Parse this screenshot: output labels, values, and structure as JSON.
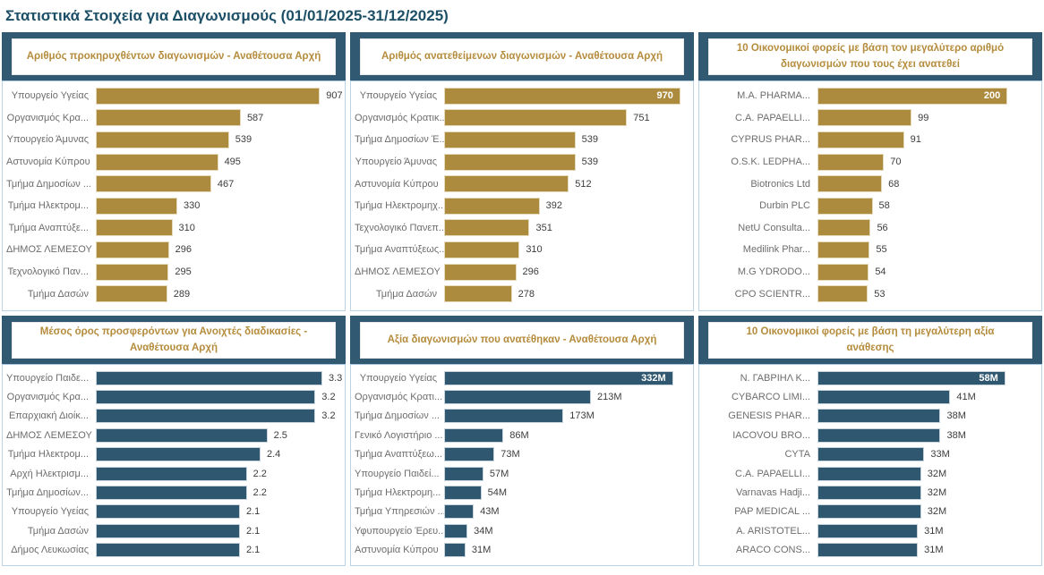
{
  "page": {
    "title": "Στατιστικά Στοιχεία για Διαγωνισμούς (01/01/2025-31/12/2025)"
  },
  "colors": {
    "gold": "#AD8B3E",
    "blue": "#2F5870",
    "band": "#315972",
    "gold_title_text": "#B48C3C",
    "page_title": "#1D4F67"
  },
  "chart_data": [
    {
      "type": "bar",
      "orientation": "horizontal",
      "title": "Αριθμός προκηρυχθέντων διαγωνισμών - Αναθέτουσα Αρχή",
      "color": "gold",
      "value_axis_hidden": true,
      "data_labels": "outside-end",
      "max_fill_pct": 92,
      "first_label_inside": false,
      "rows": [
        {
          "label": "Υπουργείο Υγείας",
          "value": 907,
          "display": "907"
        },
        {
          "label": "Οργανισμός Κρα...",
          "value": 587,
          "display": "587"
        },
        {
          "label": "Υπουργείο Άμυνας",
          "value": 539,
          "display": "539"
        },
        {
          "label": "Αστυνομία Κύπρου",
          "value": 495,
          "display": "495"
        },
        {
          "label": "Τμήμα Δημοσίων ...",
          "value": 467,
          "display": "467"
        },
        {
          "label": "Τμήμα Ηλεκτρομ...",
          "value": 330,
          "display": "330"
        },
        {
          "label": "Τμήμα Αναπτύξε...",
          "value": 310,
          "display": "310"
        },
        {
          "label": "ΔΗΜΟΣ ΛΕΜΕΣΟΥ",
          "value": 296,
          "display": "296"
        },
        {
          "label": "Τεχνολογικό Παν...",
          "value": 295,
          "display": "295"
        },
        {
          "label": "Τμήμα Δασών",
          "value": 289,
          "display": "289"
        }
      ]
    },
    {
      "type": "bar",
      "orientation": "horizontal",
      "title": "Αριθμός ανατεθείμενων διαγωνισμών - Αναθέτουσα Αρχή",
      "color": "gold",
      "value_axis_hidden": true,
      "data_labels": "outside-end",
      "max_fill_pct": 97,
      "first_label_inside": true,
      "rows": [
        {
          "label": "Υπουργείο Υγείας",
          "value": 970,
          "display": "970"
        },
        {
          "label": "Οργανισμός Κρατικ...",
          "value": 751,
          "display": "751"
        },
        {
          "label": "Τμήμα Δημοσίων Έ...",
          "value": 539,
          "display": "539"
        },
        {
          "label": "Υπουργείο Άμυνας",
          "value": 539,
          "display": "539"
        },
        {
          "label": "Αστυνομία Κύπρου",
          "value": 512,
          "display": "512"
        },
        {
          "label": "Τμήμα Ηλεκτρομηχ...",
          "value": 392,
          "display": "392"
        },
        {
          "label": "Τεχνολογικό Πανεπ...",
          "value": 351,
          "display": "351"
        },
        {
          "label": "Τμήμα Αναπτύξεως...",
          "value": 310,
          "display": "310"
        },
        {
          "label": "ΔΗΜΟΣ ΛΕΜΕΣΟΥ",
          "value": 296,
          "display": "296"
        },
        {
          "label": "Τμήμα Δασών",
          "value": 278,
          "display": "278"
        }
      ]
    },
    {
      "type": "bar",
      "orientation": "horizontal",
      "title": "10 Οικονομικοί φορείς με βάση τον μεγαλύτερο αριθμό διαγωνισμών που τους έχει ανατεθεί",
      "color": "gold",
      "value_axis_hidden": true,
      "data_labels": "outside-end",
      "max_fill_pct": 87,
      "first_label_inside": true,
      "rows": [
        {
          "label": "M.A. PHARMA...",
          "value": 200,
          "display": "200"
        },
        {
          "label": "C.A. PAPAELLI...",
          "value": 99,
          "display": "99"
        },
        {
          "label": "CYPRUS PHAR...",
          "value": 91,
          "display": "91"
        },
        {
          "label": "O.S.K. LEDPHA...",
          "value": 70,
          "display": "70"
        },
        {
          "label": "Biotronics Ltd",
          "value": 68,
          "display": "68"
        },
        {
          "label": "Durbin PLC",
          "value": 58,
          "display": "58"
        },
        {
          "label": "NetU Consulta...",
          "value": 56,
          "display": "56"
        },
        {
          "label": "Medilink Phar...",
          "value": 55,
          "display": "55"
        },
        {
          "label": "M.G YDRODO...",
          "value": 54,
          "display": "54"
        },
        {
          "label": "CPO SCIENTR...",
          "value": 53,
          "display": "53"
        }
      ]
    },
    {
      "type": "bar",
      "orientation": "horizontal",
      "title": "Μέσος όρος προσφερόντων για Ανοιχτές διαδικασίες - Αναθέτουσα Αρχή",
      "color": "blue",
      "value_axis_hidden": true,
      "data_labels": "outside-end",
      "max_fill_pct": 93,
      "first_label_inside": false,
      "rows": [
        {
          "label": "Υπουργείο Παιδε...",
          "value": 3.3,
          "display": "3.3"
        },
        {
          "label": "Οργανισμός Κρα...",
          "value": 3.2,
          "display": "3.2"
        },
        {
          "label": "Επαρχιακή Διοίκ...",
          "value": 3.2,
          "display": "3.2"
        },
        {
          "label": "ΔΗΜΟΣ ΛΕΜΕΣΟΥ",
          "value": 2.5,
          "display": "2.5"
        },
        {
          "label": "Τμήμα Ηλεκτρομ...",
          "value": 2.4,
          "display": "2.4"
        },
        {
          "label": "Αρχή Ηλεκτρισμ...",
          "value": 2.2,
          "display": "2.2"
        },
        {
          "label": "Τμήμα Δημοσίων...",
          "value": 2.2,
          "display": "2.2"
        },
        {
          "label": "Υπουργείο Υγείας",
          "value": 2.1,
          "display": "2.1"
        },
        {
          "label": "Τμήμα Δασών",
          "value": 2.1,
          "display": "2.1"
        },
        {
          "label": "Δήμος Λευκωσίας",
          "value": 2.1,
          "display": "2.1"
        }
      ]
    },
    {
      "type": "bar",
      "orientation": "horizontal",
      "title": "Αξία διαγωνισμών που ανατέθηκαν - Αναθέτουσα Αρχή",
      "color": "blue",
      "value_axis_hidden": true,
      "data_labels": "outside-end",
      "unit": "M",
      "max_fill_pct": 94,
      "first_label_inside": true,
      "rows": [
        {
          "label": "Υπουργείο Υγείας",
          "value": 332,
          "display": "332M"
        },
        {
          "label": "Οργανισμός Κρατι...",
          "value": 213,
          "display": "213M"
        },
        {
          "label": "Τμήμα Δημοσίων ...",
          "value": 173,
          "display": "173M"
        },
        {
          "label": "Γενικό Λογιστήριο ...",
          "value": 86,
          "display": "86M"
        },
        {
          "label": "Τμήμα Αναπτύξεω...",
          "value": 73,
          "display": "73M"
        },
        {
          "label": "Υπουργείο Παιδεί...",
          "value": 57,
          "display": "57M"
        },
        {
          "label": "Τμήμα Ηλεκτρομη...",
          "value": 54,
          "display": "54M"
        },
        {
          "label": "Τμήμα Υπηρεσιών ...",
          "value": 43,
          "display": "43M"
        },
        {
          "label": "Υφυπουργείο Έρευ...",
          "value": 34,
          "display": "34M"
        },
        {
          "label": "Αστυνομία Κύπρου",
          "value": 31,
          "display": "31M"
        }
      ]
    },
    {
      "type": "bar",
      "orientation": "horizontal",
      "title": "10 Οικονομικοί φορείς με βάση τη μεγαλύτερη αξία ανάθεσης",
      "color": "blue",
      "value_axis_hidden": true,
      "data_labels": "outside-end",
      "unit": "M",
      "max_fill_pct": 86,
      "first_label_inside": true,
      "rows": [
        {
          "label": "Ν. ΓΑΒΡΙΗΛ Κ...",
          "value": 58,
          "display": "58M"
        },
        {
          "label": "CYBARCO LIMI...",
          "value": 41,
          "display": "41M"
        },
        {
          "label": "GENESIS PHAR...",
          "value": 38,
          "display": "38M"
        },
        {
          "label": "IACOVOU BRO...",
          "value": 38,
          "display": "38M"
        },
        {
          "label": "CYTA",
          "value": 33,
          "display": "33M"
        },
        {
          "label": "C.A. PAPAELLI...",
          "value": 32,
          "display": "32M"
        },
        {
          "label": "Varnavas Hadji...",
          "value": 32,
          "display": "32M"
        },
        {
          "label": "PAP MEDICAL ...",
          "value": 32,
          "display": "32M"
        },
        {
          "label": "A. ARISTOTEL...",
          "value": 31,
          "display": "31M"
        },
        {
          "label": "ARACO CONS...",
          "value": 31,
          "display": "31M"
        }
      ]
    }
  ]
}
